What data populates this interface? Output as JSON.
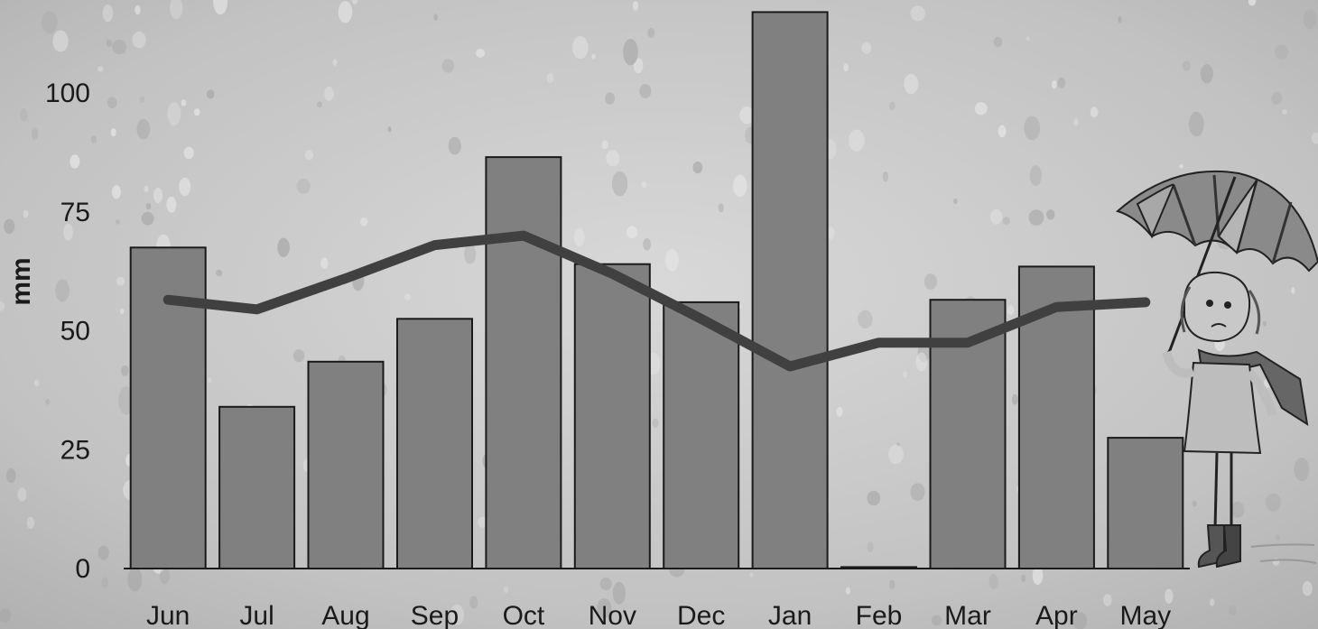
{
  "chart_data": {
    "type": "bar",
    "ylabel": "mm",
    "ylim": [
      0,
      117
    ],
    "yticks": [
      0,
      25,
      50,
      75,
      100
    ],
    "grid": false,
    "legend": "none",
    "categories": [
      "Jun",
      "Jul",
      "Aug",
      "Sep",
      "Oct",
      "Nov",
      "Dec",
      "Jan",
      "Feb",
      "Mar",
      "Apr",
      "May"
    ],
    "series": [
      {
        "type": "bar",
        "values": [
          67.5,
          34,
          43.5,
          52.5,
          86.5,
          64,
          56,
          117,
          0.3,
          56.5,
          63.5,
          27.5
        ],
        "color": "#808080"
      },
      {
        "type": "line",
        "values": [
          56.5,
          54.5,
          61,
          68,
          70,
          62,
          52.5,
          42.5,
          47.5,
          47.5,
          55,
          56
        ],
        "color": "#404040"
      }
    ]
  },
  "colors": {
    "bar_fill": "#808080",
    "bar_stroke": "#1a1a1a",
    "line": "#404040",
    "background": "#c4c4c4"
  },
  "decorations": {
    "background": "raindrops-on-glass",
    "character": "girl-with-umbrella-icon"
  }
}
